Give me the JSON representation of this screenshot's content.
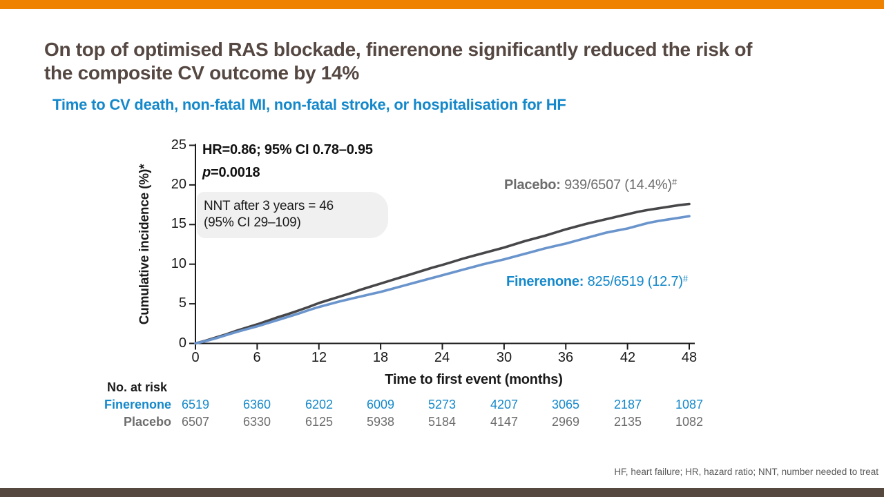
{
  "slide": {
    "title_line1": "On top of optimised RAS blockade, finerenone significantly reduced the risk of",
    "title_line2": "the composite CV outcome by 14%",
    "subtitle": "Time to CV death, non-fatal MI, non-fatal stroke, or hospitalisation for HF",
    "footnote": "HF, heart failure; HR, hazard ratio; NNT, number needed to treat",
    "colors": {
      "top_bar": "#EF8200",
      "bottom_bar": "#55483E",
      "title_text": "#554741",
      "accent_blue": "#1488CA",
      "muted_gray": "#6D6D6D",
      "nnt_box_bg": "#F0F0F0",
      "axis": "#1a1a1a"
    }
  },
  "chart_data": {
    "type": "line",
    "xlabel": "Time to first event (months)",
    "ylabel": "Cumulative incidence (%)*",
    "xlim": [
      0,
      48
    ],
    "ylim": [
      0,
      25
    ],
    "x_ticks": [
      0,
      6,
      12,
      18,
      24,
      30,
      36,
      42,
      48
    ],
    "y_ticks": [
      0,
      5,
      10,
      15,
      20,
      25
    ],
    "grid": false,
    "legend_position": "on-chart-labels",
    "annotations": {
      "hr_line": "HR=0.86;  95%  CI 0.78–0.95",
      "p_prefix": "p",
      "p_rest": "=0.0018",
      "nnt_line1": "NNT  after 3 years = 46",
      "nnt_line2": "(95% CI 29–109)"
    },
    "x_start": 0,
    "x_step_months": 1,
    "series": [
      {
        "name": "Placebo",
        "label_name": "Placebo:",
        "label_value": " 939/6507 (14.4%)",
        "label_sup": "#",
        "color": "#47474A",
        "values": [
          0,
          0.35,
          0.75,
          1.15,
          1.6,
          2.0,
          2.4,
          2.85,
          3.3,
          3.7,
          4.15,
          4.6,
          5.1,
          5.5,
          5.9,
          6.3,
          6.75,
          7.15,
          7.55,
          7.95,
          8.35,
          8.75,
          9.15,
          9.55,
          9.9,
          10.3,
          10.7,
          11.05,
          11.4,
          11.75,
          12.1,
          12.5,
          12.9,
          13.25,
          13.6,
          14.0,
          14.4,
          14.75,
          15.1,
          15.4,
          15.7,
          16.0,
          16.3,
          16.6,
          16.85,
          17.05,
          17.25,
          17.45,
          17.6
        ]
      },
      {
        "name": "Finerenone",
        "label_name": "Finerenone:",
        "label_value": " 825/6519 (12.7)",
        "label_sup": "#",
        "color": "#6A94CC",
        "values": [
          0,
          0.3,
          0.65,
          1.05,
          1.45,
          1.8,
          2.15,
          2.55,
          2.95,
          3.35,
          3.75,
          4.2,
          4.6,
          4.95,
          5.3,
          5.6,
          5.9,
          6.2,
          6.5,
          6.85,
          7.2,
          7.55,
          7.9,
          8.25,
          8.6,
          8.95,
          9.3,
          9.65,
          10.0,
          10.3,
          10.6,
          10.95,
          11.3,
          11.65,
          12.0,
          12.3,
          12.6,
          12.95,
          13.3,
          13.65,
          14.0,
          14.25,
          14.5,
          14.85,
          15.2,
          15.45,
          15.65,
          15.85,
          16.05
        ]
      }
    ]
  },
  "risk_table": {
    "header": "No. at risk",
    "rows": [
      {
        "label": "Finerenone",
        "values": [
          "6519",
          "6360",
          "6202",
          "6009",
          "5273",
          "4207",
          "3065",
          "2187",
          "1087"
        ]
      },
      {
        "label": "Placebo",
        "values": [
          "6507",
          "6330",
          "6125",
          "5938",
          "5184",
          "4147",
          "2969",
          "2135",
          "1082"
        ]
      }
    ]
  }
}
